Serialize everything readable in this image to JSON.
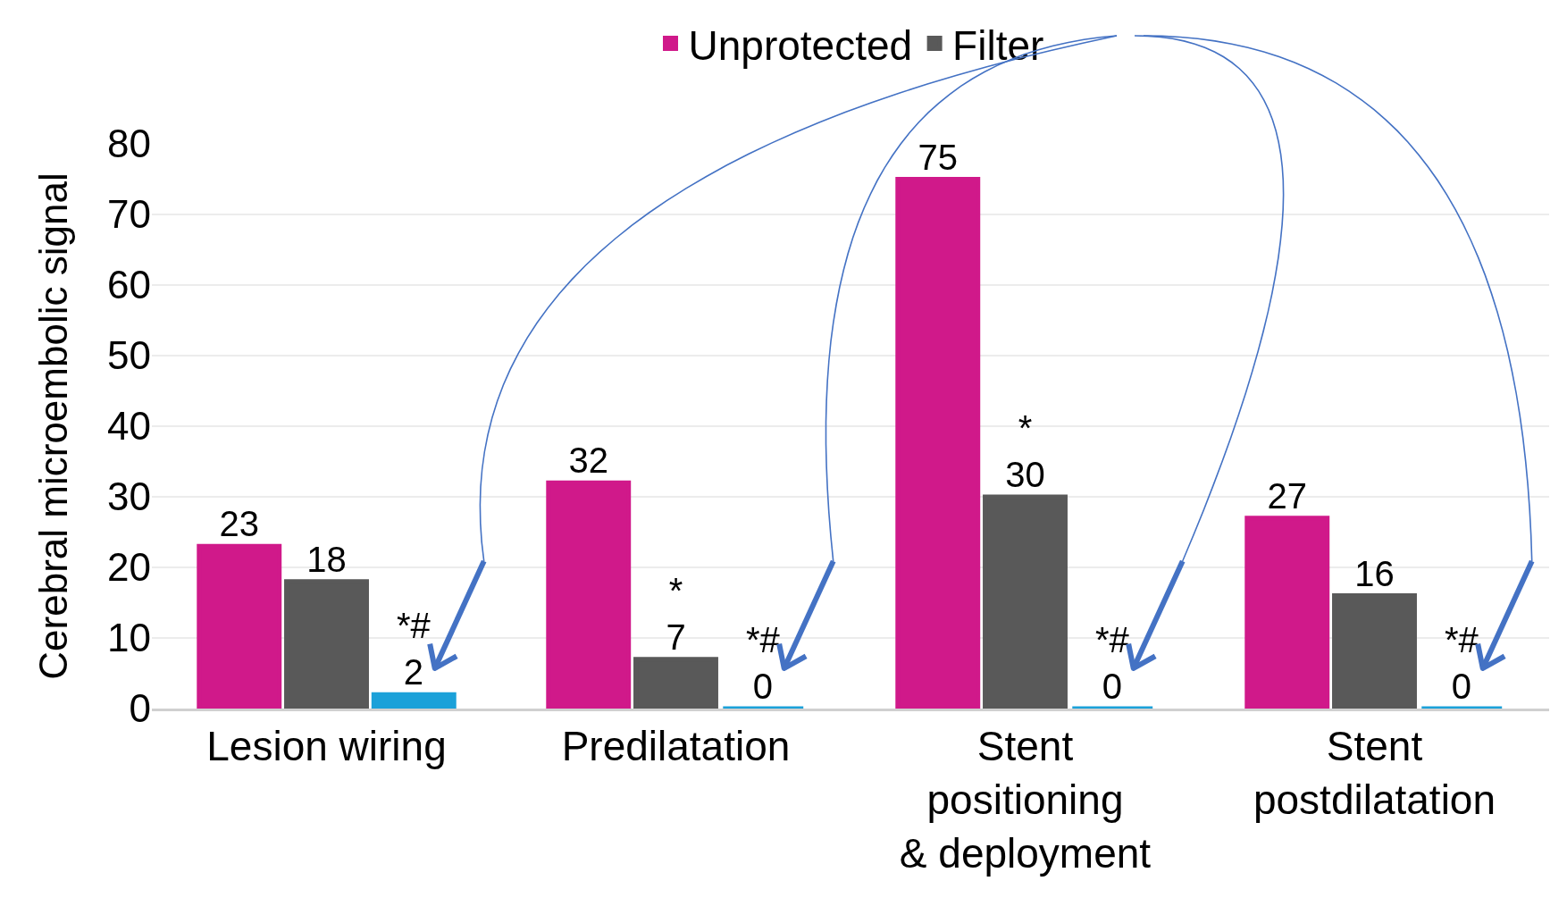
{
  "chart_data": {
    "type": "bar",
    "ylabel": "Cerebral microembolic signal",
    "categories": [
      "Lesion wiring",
      "Predilatation",
      "Stent\npositioning\n& deployment",
      "Stent\npostdilatation"
    ],
    "series": [
      {
        "name": "Unprotected",
        "color": "#d0198a",
        "values": [
          23,
          32,
          75,
          27
        ]
      },
      {
        "name": "Filter",
        "color": "#595959",
        "values": [
          18,
          7,
          30,
          16
        ],
        "value_labels": [
          "18",
          "*\n7",
          "*\n30",
          "16"
        ]
      },
      {
        "color": "#1ba1d9",
        "values": [
          2,
          0,
          0,
          0
        ],
        "value_labels": [
          "*#\n2",
          "*#\n0",
          "*#\n0",
          "*#\n0"
        ]
      }
    ],
    "data_labels": true,
    "ylim": [
      0,
      80
    ],
    "yticks": [
      0,
      10,
      20,
      30,
      40,
      50,
      60,
      70,
      80
    ],
    "grid": "y",
    "legend": "top"
  }
}
